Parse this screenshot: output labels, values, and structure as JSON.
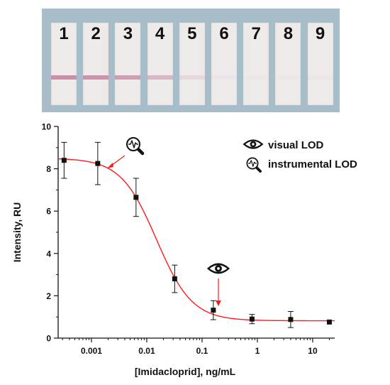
{
  "test_strips": [
    {
      "label": "1",
      "band_intensity": 0.95
    },
    {
      "label": "2",
      "band_intensity": 0.9
    },
    {
      "label": "3",
      "band_intensity": 0.8
    },
    {
      "label": "4",
      "band_intensity": 0.55
    },
    {
      "label": "5",
      "band_intensity": 0.2
    },
    {
      "label": "6",
      "band_intensity": 0.04
    },
    {
      "label": "7",
      "band_intensity": 0.03
    },
    {
      "label": "8",
      "band_intensity": 0.03
    },
    {
      "label": "9",
      "band_intensity": 0.03
    }
  ],
  "colors": {
    "curve": "#ff1a1a",
    "points": "#111111",
    "band": "#c88aa6",
    "panel": "#a7bdca",
    "strip": "#eeeaea"
  },
  "chart_data": {
    "type": "scatter",
    "xlabel": "[Imidacloprid], ng/mL",
    "ylabel": "Intensity, RU",
    "xscale": "log",
    "xlim": [
      0.00025,
      25
    ],
    "ylim": [
      0,
      10
    ],
    "x_ticks": [
      {
        "value": 0.001,
        "label": "0.001"
      },
      {
        "value": 0.01,
        "label": "0.01"
      },
      {
        "value": 0.1,
        "label": "0.1"
      },
      {
        "value": 1,
        "label": "1"
      },
      {
        "value": 10,
        "label": "10"
      }
    ],
    "y_ticks": [
      {
        "value": 0,
        "label": "0"
      },
      {
        "value": 2,
        "label": "2"
      },
      {
        "value": 4,
        "label": "4"
      },
      {
        "value": 6,
        "label": "6"
      },
      {
        "value": 8,
        "label": "8"
      },
      {
        "value": 10,
        "label": "10"
      }
    ],
    "points": [
      {
        "x": 0.00032,
        "y": 8.4,
        "err": 0.85
      },
      {
        "x": 0.0013,
        "y": 8.25,
        "err": 1.0
      },
      {
        "x": 0.0064,
        "y": 6.65,
        "err": 0.9
      },
      {
        "x": 0.032,
        "y": 2.8,
        "err": 0.65
      },
      {
        "x": 0.16,
        "y": 1.32,
        "err": 0.45
      },
      {
        "x": 0.8,
        "y": 0.9,
        "err": 0.22
      },
      {
        "x": 4.0,
        "y": 0.88,
        "err": 0.38
      },
      {
        "x": 20,
        "y": 0.76,
        "err": 0.0
      }
    ],
    "fit": {
      "type": "4PL",
      "A1": 8.5,
      "A2": 0.82,
      "x0": 0.015,
      "p": 1.35
    },
    "legend": [
      {
        "icon": "eye-icon",
        "label": "visual LOD"
      },
      {
        "icon": "magnifier-icon",
        "label": "instrumental LOD"
      }
    ],
    "annotations": [
      {
        "name": "instrumental-lod-marker",
        "icon": "magnifier-icon",
        "x": 0.0022,
        "y": 8.2
      },
      {
        "name": "visual-lod-marker",
        "icon": "eye-icon",
        "x": 0.2,
        "y": 1.5
      }
    ],
    "grid": false,
    "legend_position": "top-right"
  }
}
